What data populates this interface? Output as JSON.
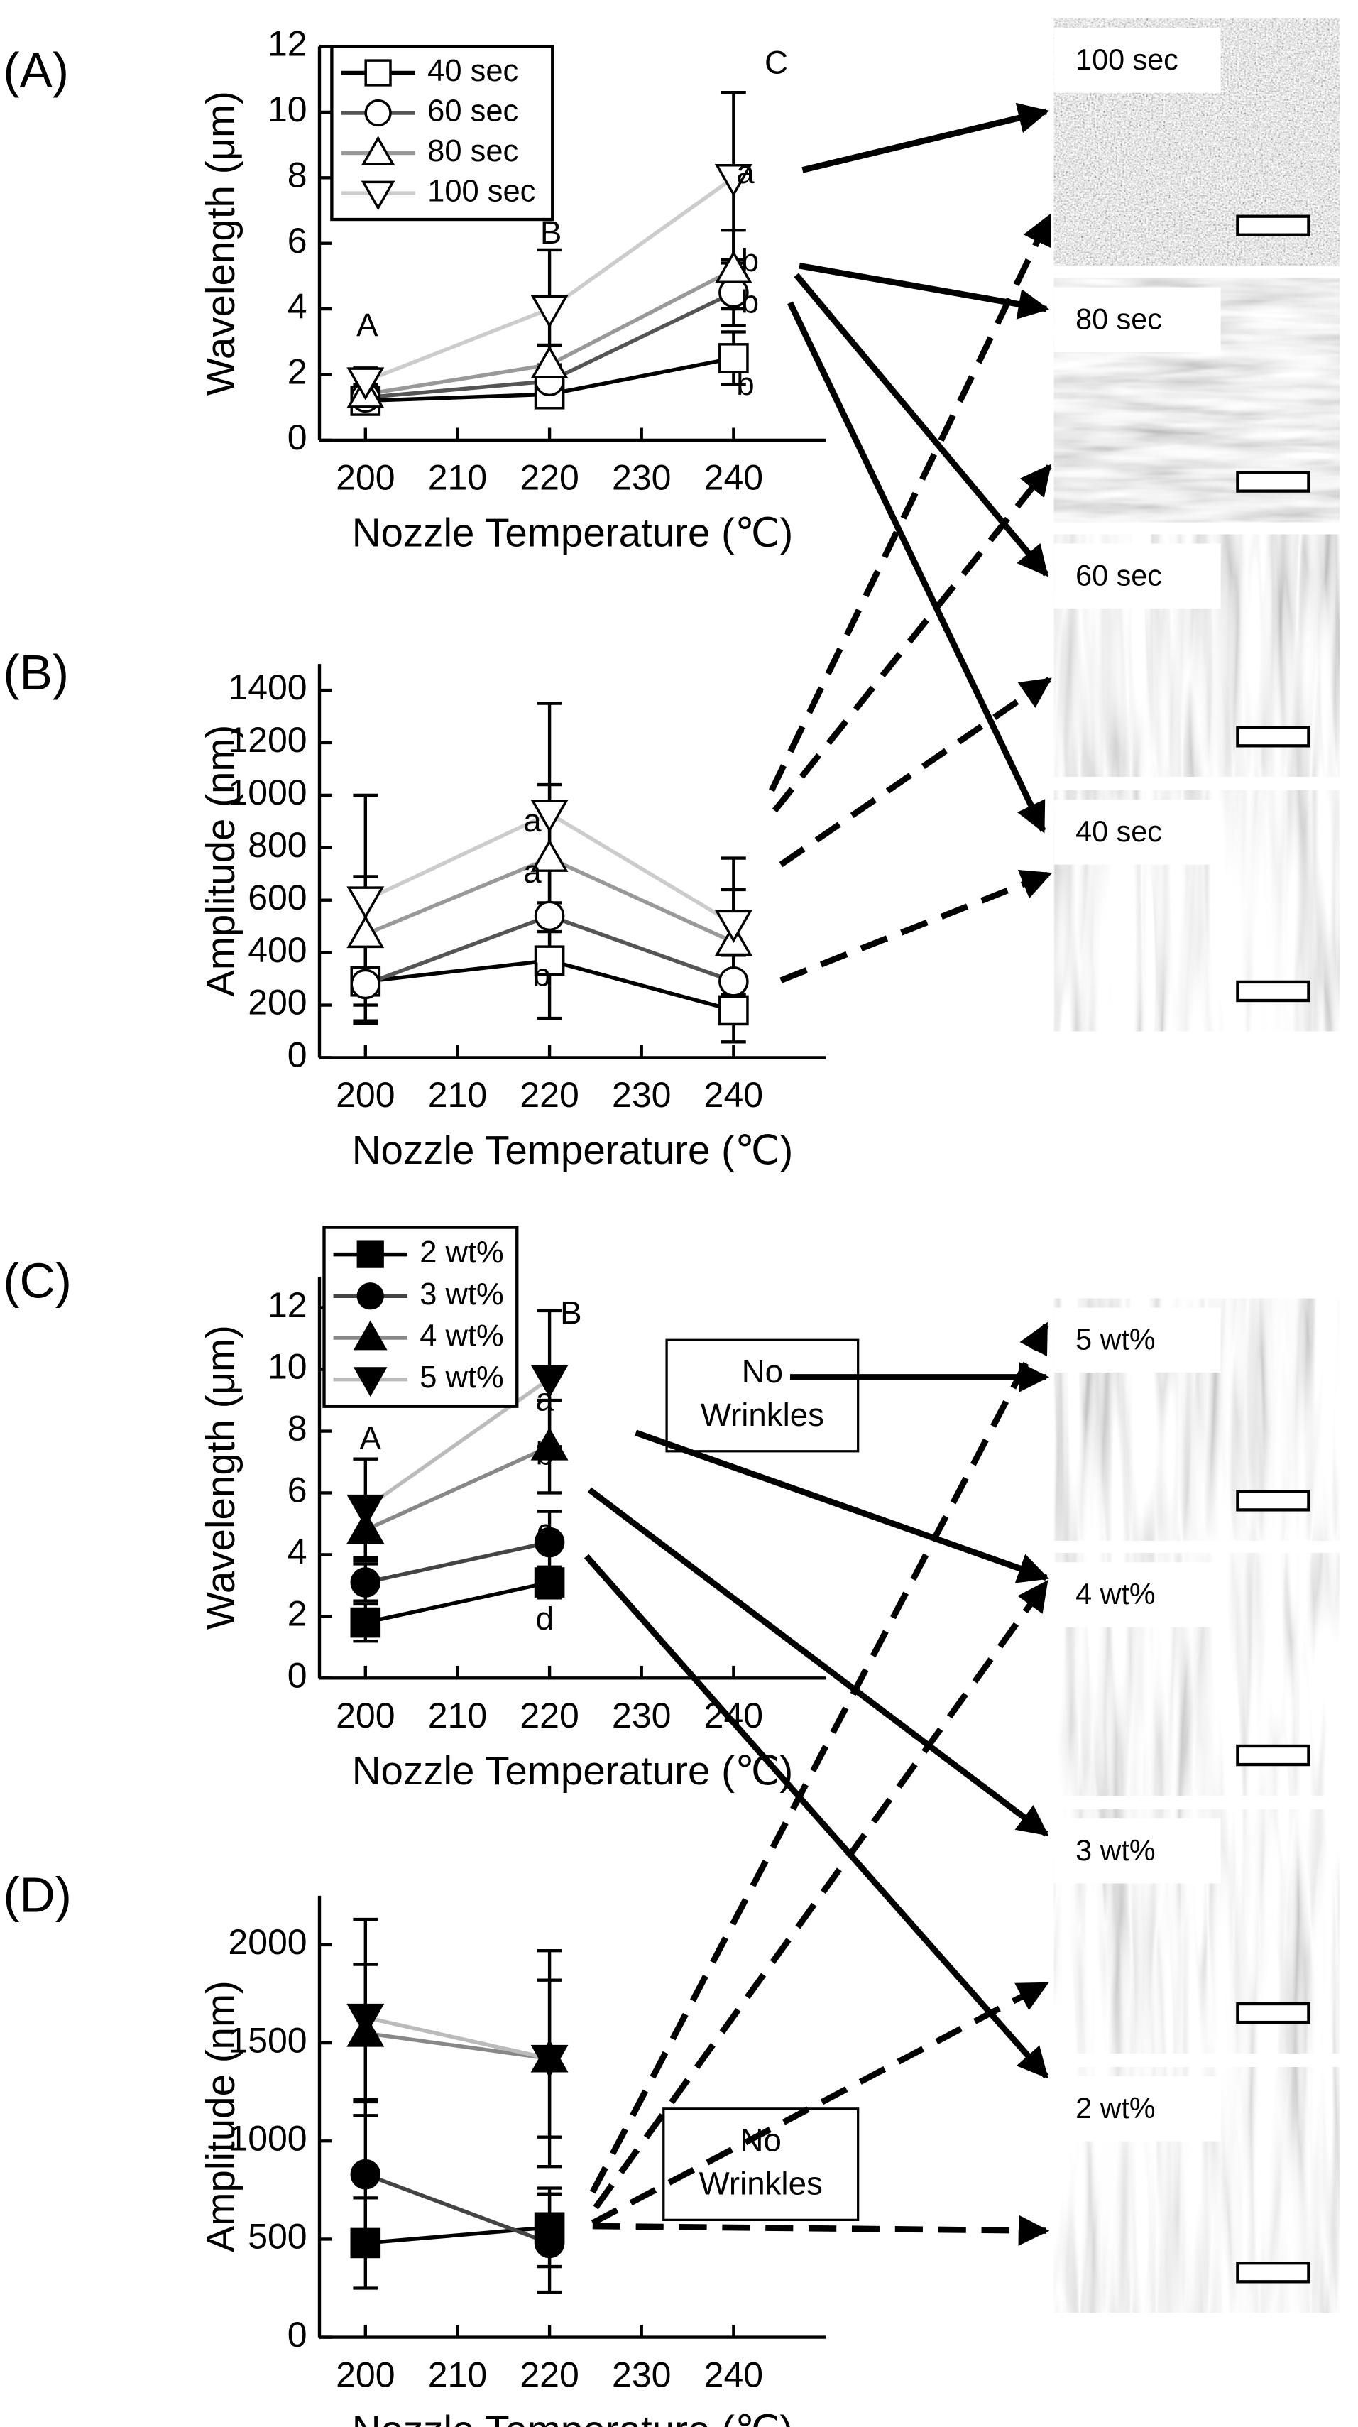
{
  "chart_data": [
    {
      "type": "line",
      "panel_label": "(A)",
      "ylabel": "Wavelength (μm)",
      "xlabel": "Nozzle Temperature (℃)",
      "x": [
        200,
        220,
        240
      ],
      "xlim": [
        195,
        250
      ],
      "xticks": [
        200,
        210,
        220,
        230,
        240
      ],
      "ylim": [
        0,
        12
      ],
      "yticks": [
        0,
        2,
        4,
        6,
        8,
        10,
        12
      ],
      "series": [
        {
          "name": "40 sec",
          "color": "#000000",
          "marker": "square",
          "marker_fill": "#ffffff",
          "values": [
            1.2,
            1.4,
            2.5
          ],
          "errors": [
            0.3,
            0.4,
            0.8
          ]
        },
        {
          "name": "60 sec",
          "color": "#555555",
          "marker": "circle",
          "marker_fill": "#ffffff",
          "values": [
            1.3,
            1.8,
            4.5
          ],
          "errors": [
            0.3,
            0.5,
            1.0
          ]
        },
        {
          "name": "80 sec",
          "color": "#999999",
          "marker": "triangle-up",
          "marker_fill": "#ffffff",
          "values": [
            1.4,
            2.3,
            5.2
          ],
          "errors": [
            0.3,
            0.6,
            1.2
          ]
        },
        {
          "name": "100 sec",
          "color": "#cccccc",
          "marker": "triangle-down",
          "marker_fill": "#ffffff",
          "values": [
            1.8,
            4.0,
            8.0
          ],
          "errors": [
            0.4,
            1.8,
            2.6
          ]
        }
      ],
      "annotations": [
        "A",
        "B",
        "C",
        "a",
        "b",
        "b",
        "b"
      ]
    },
    {
      "type": "line",
      "panel_label": "(B)",
      "ylabel": "Amplitude (nm)",
      "xlabel": "Nozzle Temperature (℃)",
      "x": [
        200,
        220,
        240
      ],
      "xlim": [
        195,
        250
      ],
      "xticks": [
        200,
        210,
        220,
        230,
        240
      ],
      "ylim": [
        0,
        1500
      ],
      "yticks": [
        0,
        200,
        400,
        600,
        800,
        1000,
        1200,
        1400
      ],
      "series": [
        {
          "name": "40 sec",
          "color": "#000000",
          "marker": "square",
          "marker_fill": "#ffffff",
          "values": [
            290,
            370,
            180
          ],
          "errors": [
            150,
            220,
            120
          ]
        },
        {
          "name": "60 sec",
          "color": "#555555",
          "marker": "circle",
          "marker_fill": "#ffffff",
          "values": [
            280,
            540,
            290
          ],
          "errors": [
            150,
            200,
            100
          ]
        },
        {
          "name": "80 sec",
          "color": "#999999",
          "marker": "triangle-up",
          "marker_fill": "#ffffff",
          "values": [
            470,
            760,
            440
          ],
          "errors": [
            220,
            280,
            200
          ]
        },
        {
          "name": "100 sec",
          "color": "#cccccc",
          "marker": "triangle-down",
          "marker_fill": "#ffffff",
          "values": [
            600,
            930,
            510
          ],
          "errors": [
            400,
            420,
            250
          ]
        }
      ],
      "annotations": [
        "a",
        "a",
        "b"
      ]
    },
    {
      "type": "line",
      "panel_label": "(C)",
      "ylabel": "Wavelength (μm)",
      "xlabel": "Nozzle Temperature (℃)",
      "x": [
        200,
        220,
        240
      ],
      "xlim": [
        195,
        250
      ],
      "xticks": [
        200,
        210,
        220,
        230,
        240
      ],
      "ylim": [
        0,
        13
      ],
      "yticks": [
        0,
        2,
        4,
        6,
        8,
        10,
        12
      ],
      "series": [
        {
          "name": "2 wt%",
          "color": "#000000",
          "marker": "square",
          "marker_fill": "#000000",
          "values": [
            1.8,
            3.1,
            null
          ],
          "errors": [
            0.6,
            0.5,
            null
          ]
        },
        {
          "name": "3 wt%",
          "color": "#444444",
          "marker": "circle",
          "marker_fill": "#000000",
          "values": [
            3.1,
            4.4,
            null
          ],
          "errors": [
            0.6,
            1.0,
            null
          ]
        },
        {
          "name": "4 wt%",
          "color": "#888888",
          "marker": "triangle-up",
          "marker_fill": "#000000",
          "values": [
            4.8,
            7.5,
            null
          ],
          "errors": [
            1.0,
            1.5,
            null
          ]
        },
        {
          "name": "5 wt%",
          "color": "#bbbbbb",
          "marker": "triangle-down",
          "marker_fill": "#000000",
          "values": [
            5.5,
            9.7,
            null
          ],
          "errors": [
            1.6,
            2.2,
            null
          ]
        }
      ],
      "annotations": [
        "A",
        "B",
        "a",
        "b",
        "c",
        "d"
      ]
    },
    {
      "type": "line",
      "panel_label": "(D)",
      "ylabel": "Amplitude (nm)",
      "xlabel": "Nozzle Temperature (℃)",
      "x": [
        200,
        220,
        240
      ],
      "xlim": [
        195,
        250
      ],
      "xticks": [
        200,
        210,
        220,
        230,
        240
      ],
      "ylim": [
        0,
        2250
      ],
      "yticks": [
        0,
        500,
        1000,
        1500,
        2000
      ],
      "series": [
        {
          "name": "2 wt%",
          "color": "#000000",
          "marker": "square",
          "marker_fill": "#000000",
          "values": [
            480,
            560,
            null
          ],
          "errors": [
            230,
            200,
            null
          ]
        },
        {
          "name": "3 wt%",
          "color": "#444444",
          "marker": "circle",
          "marker_fill": "#000000",
          "values": [
            830,
            480,
            null
          ],
          "errors": [
            380,
            250,
            null
          ]
        },
        {
          "name": "4 wt%",
          "color": "#888888",
          "marker": "triangle-up",
          "marker_fill": "#000000",
          "values": [
            1550,
            1420,
            null
          ],
          "errors": [
            350,
            400,
            null
          ]
        },
        {
          "name": "5 wt%",
          "color": "#bbbbbb",
          "marker": "triangle-down",
          "marker_fill": "#000000",
          "values": [
            1630,
            1420,
            null
          ],
          "errors": [
            500,
            550,
            null
          ]
        }
      ],
      "annotations": []
    }
  ],
  "micrographs": [
    "100 sec",
    "80 sec",
    "60 sec",
    "40 sec",
    "5 wt%",
    "4 wt%",
    "3 wt%",
    "2 wt%"
  ],
  "no_wrinkles": [
    [
      "No",
      "Wrinkles"
    ],
    [
      "No",
      "Wrinkles"
    ]
  ]
}
